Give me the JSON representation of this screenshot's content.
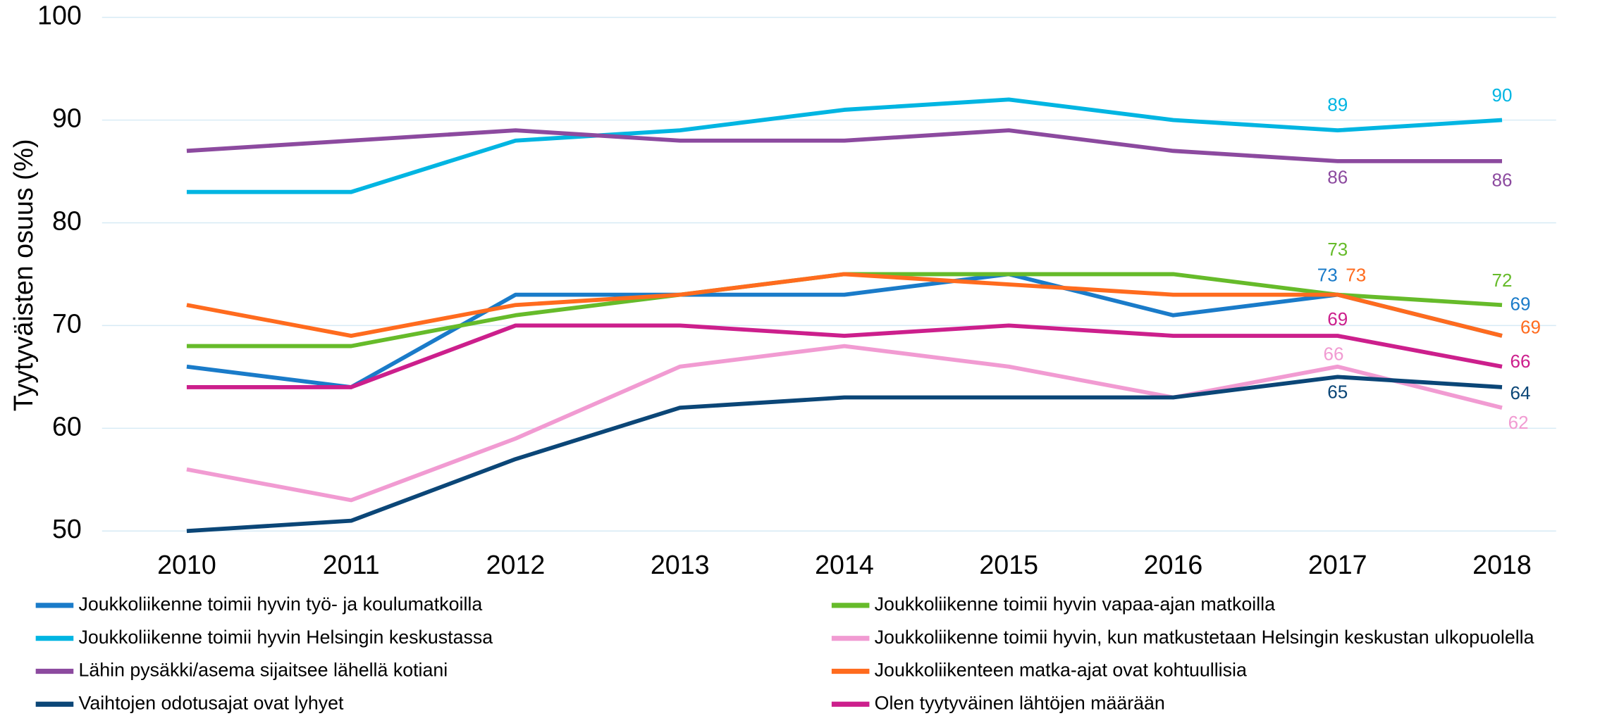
{
  "chart_data": {
    "type": "line",
    "y_label": "Tyytyväisten osuus (%)",
    "categories": [
      "2010",
      "2011",
      "2012",
      "2013",
      "2014",
      "2015",
      "2016",
      "2017",
      "2018"
    ],
    "ylim": [
      50,
      100
    ],
    "yticks": [
      50,
      60,
      70,
      80,
      90,
      100
    ],
    "grid": true,
    "data_label_indices": [
      7,
      8
    ],
    "series": [
      {
        "name": "Joukkoliikenne toimii hyvin työ- ja koulumatkoilla",
        "color": "#1a7bc9",
        "values": [
          66,
          64,
          73,
          73,
          73,
          75,
          71,
          73,
          69
        ]
      },
      {
        "name": "Joukkoliikenne toimii hyvin vapaa-ajan matkoilla",
        "color": "#66bb2a",
        "values": [
          68,
          68,
          71,
          73,
          75,
          75,
          75,
          73,
          72
        ]
      },
      {
        "name": "Joukkoliikenne toimii hyvin Helsingin keskustassa",
        "color": "#00b5e2",
        "values": [
          83,
          83,
          88,
          89,
          91,
          92,
          90,
          89,
          90
        ]
      },
      {
        "name": "Joukkoliikenne toimii hyvin, kun matkustetaan Helsingin keskustan ulkopuolella",
        "color": "#f19bd2",
        "values": [
          56,
          53,
          59,
          66,
          68,
          66,
          63,
          66,
          62
        ]
      },
      {
        "name": "Lähin pysäkki/asema sijaitsee lähellä kotiani",
        "color": "#8c4a9f",
        "values": [
          87,
          88,
          89,
          88,
          88,
          89,
          87,
          86,
          86
        ]
      },
      {
        "name": "Joukkoliikenteen matka-ajat ovat kohtuullisia",
        "color": "#ff6b1e",
        "values": [
          72,
          69,
          72,
          73,
          75,
          74,
          73,
          73,
          69
        ]
      },
      {
        "name": "Vaihtojen odotusajat ovat lyhyet",
        "color": "#0b4677",
        "values": [
          50,
          51,
          57,
          62,
          63,
          63,
          63,
          65,
          64
        ]
      },
      {
        "name": "Olen tyytyväinen lähtöjen määrään",
        "color": "#cc1f8c",
        "values": [
          64,
          64,
          70,
          70,
          69,
          70,
          69,
          69,
          66
        ]
      }
    ]
  }
}
